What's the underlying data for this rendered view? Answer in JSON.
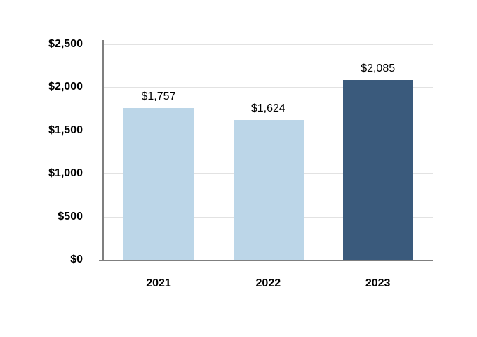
{
  "chart_data": {
    "type": "bar",
    "title": "",
    "categories": [
      "2021",
      "2022",
      "2023"
    ],
    "values": [
      1757,
      1624,
      2085
    ],
    "data_labels": [
      "$1,757",
      "$1,624",
      "$2,085"
    ],
    "y_ticks": [
      {
        "value": 2500,
        "label": "$2,500"
      },
      {
        "value": 2000,
        "label": "$2,000"
      },
      {
        "value": 1500,
        "label": "$1,500"
      },
      {
        "value": 1000,
        "label": "$1,000"
      },
      {
        "value": 500,
        "label": "$500"
      },
      {
        "value": 0,
        "label": "$0"
      }
    ],
    "ylim": [
      0,
      2500
    ],
    "grid": true,
    "legend": false,
    "bar_colors": [
      "#BCD6E8",
      "#BCD6E8",
      "#3A5A7C"
    ],
    "colors": {
      "light_bar": "#BCD6E8",
      "dark_bar": "#3A5A7C",
      "gridline": "#E2E2E2",
      "axis_line": "#7F7F7F",
      "text": "#000000"
    }
  }
}
